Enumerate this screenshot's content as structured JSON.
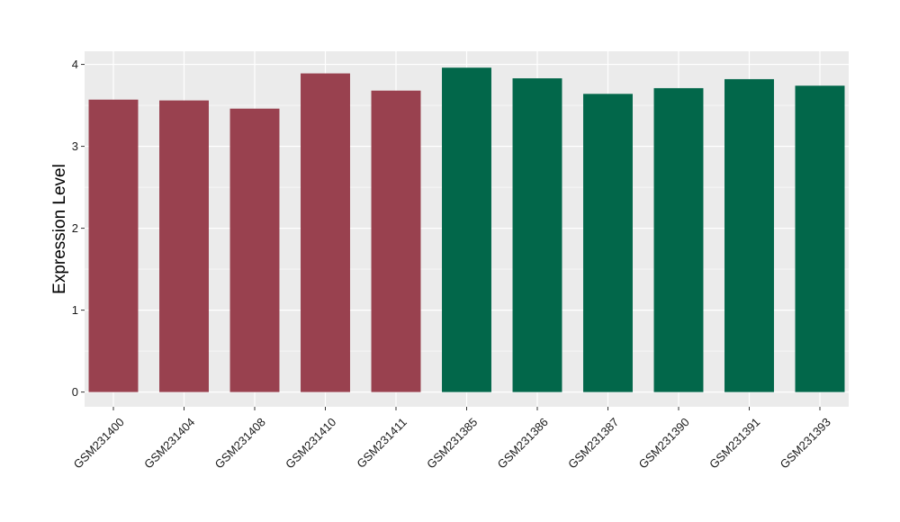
{
  "chart_data": {
    "type": "bar",
    "title": "",
    "xlabel": "",
    "ylabel": "Expression Level",
    "ylim": [
      -0.18,
      4.16
    ],
    "yticks": [
      0,
      1,
      2,
      3,
      4
    ],
    "grid": true,
    "categories": [
      "GSM231400",
      "GSM231404",
      "GSM231408",
      "GSM231410",
      "GSM231411",
      "GSM231385",
      "GSM231386",
      "GSM231387",
      "GSM231390",
      "GSM231391",
      "GSM231393"
    ],
    "values": [
      3.57,
      3.56,
      3.46,
      3.89,
      3.68,
      3.96,
      3.83,
      3.64,
      3.71,
      3.82,
      3.74
    ],
    "groups": [
      0,
      0,
      0,
      0,
      0,
      1,
      1,
      1,
      1,
      1,
      1
    ],
    "group_colors": [
      "#99414f",
      "#02674a"
    ],
    "panel_color": "#ebebeb",
    "grid_color": "#ffffff"
  }
}
